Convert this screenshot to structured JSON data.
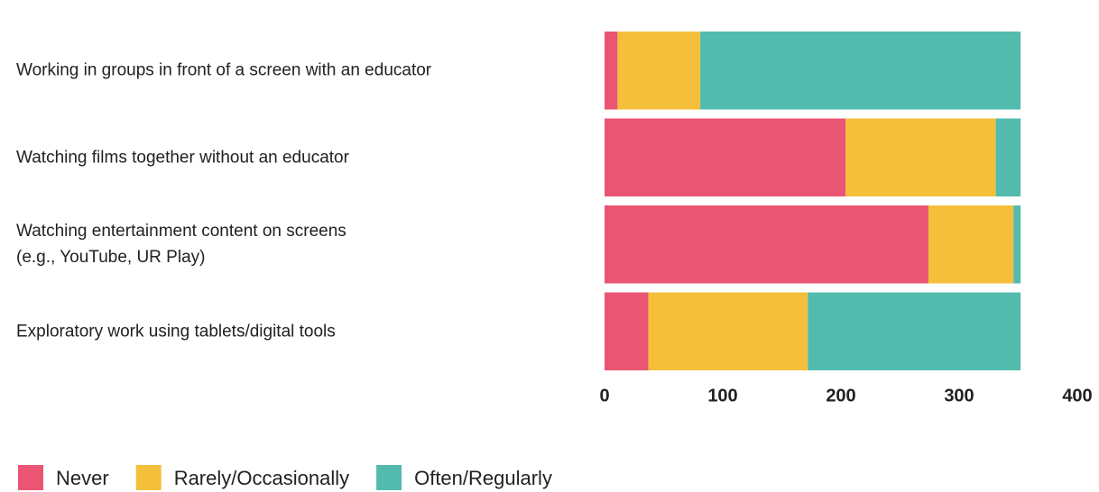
{
  "chart_data": {
    "type": "stacked_bar_horizontal",
    "categories": [
      "Working in groups in front of a screen with an educator",
      "Watching films together without an educator",
      "Watching entertainment content on screens\n(e.g., YouTube, UR Play)",
      "Exploratory work using tablets/digital tools"
    ],
    "series": [
      {
        "name": "Never",
        "color": "#ea5573",
        "values": [
          11,
          204,
          274,
          37
        ]
      },
      {
        "name": "Rarely/Occasionally",
        "color": "#f4bf3a",
        "values": [
          70,
          127,
          72,
          135
        ]
      },
      {
        "name": "Often/Regularly",
        "color": "#52bbae",
        "values": [
          271,
          21,
          6,
          180
        ]
      }
    ],
    "xlim": [
      0,
      400
    ],
    "xticks": [
      0,
      100,
      200,
      300,
      400
    ],
    "grid": false,
    "legend": "bottom-left"
  }
}
